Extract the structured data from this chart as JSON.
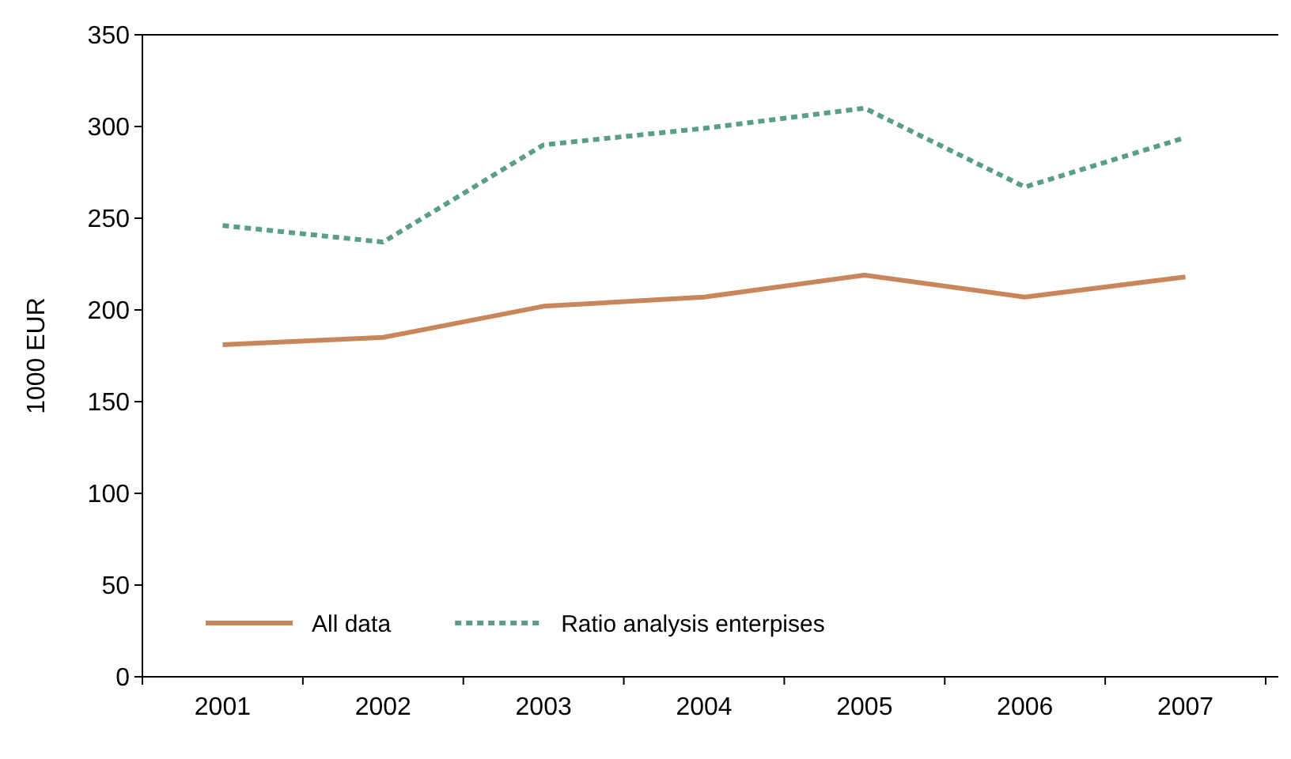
{
  "chart_data": {
    "type": "line",
    "ylabel": "1000 EUR",
    "categories": [
      "2001",
      "2002",
      "2003",
      "2004",
      "2005",
      "2006",
      "2007"
    ],
    "series": [
      {
        "name": "All data",
        "color": "#c8865a",
        "line_style": "solid",
        "values": [
          181,
          185,
          202,
          207,
          219,
          207,
          218
        ]
      },
      {
        "name": "Ratio analysis enterpises",
        "color": "#5a9e84",
        "line_style": "dotted",
        "values": [
          246,
          237,
          290,
          299,
          310,
          267,
          294
        ]
      }
    ],
    "ylim": [
      0,
      350
    ],
    "yticks": [
      0,
      50,
      100,
      150,
      200,
      250,
      300,
      350
    ],
    "grid": false,
    "legend": "bottom left"
  }
}
